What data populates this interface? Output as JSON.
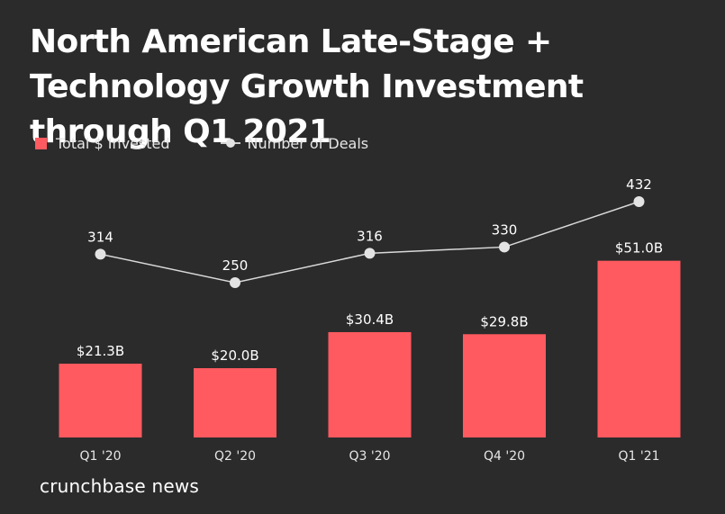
{
  "chart_data": {
    "type": "bar",
    "title": "North American Late-Stage + Technology Growth Investment through Q1 2021",
    "categories": [
      "Q1 '20",
      "Q2 '20",
      "Q3 '20",
      "Q4 '20",
      "Q1 '21"
    ],
    "series": [
      {
        "name": "Total $ Invested",
        "type": "bar",
        "unit": "$B",
        "values": [
          21.3,
          20.0,
          30.4,
          29.8,
          51.0
        ],
        "labels": [
          "$21.3B",
          "$20.0B",
          "$30.4B",
          "$29.8B",
          "$51.0B"
        ],
        "color": "#ff5a5f"
      },
      {
        "name": "Number of Deals",
        "type": "line",
        "values": [
          314,
          250,
          316,
          330,
          432
        ],
        "labels": [
          "314",
          "250",
          "316",
          "330",
          "432"
        ],
        "color": "#d9d9d9"
      }
    ],
    "xlabel": "",
    "ylabel": "",
    "grid": false,
    "legend_position": "top-left"
  },
  "brand": "crunchbase news",
  "colors": {
    "background": "#2b2b2b",
    "bar": "#ff5a5f",
    "line": "#d9d9d9",
    "text": "#ffffff"
  }
}
